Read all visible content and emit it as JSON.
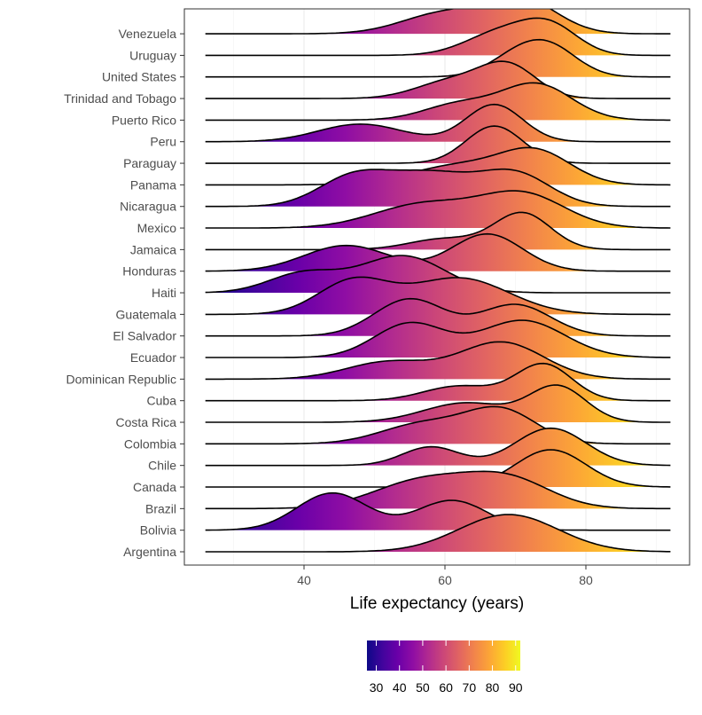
{
  "chart_data": {
    "type": "ridgeline",
    "xlabel": "Life expectancy (years)",
    "x_ticks": [
      40,
      60,
      80
    ],
    "x_range": [
      24.5,
      94
    ],
    "grid": true,
    "fill_colormap": "plasma",
    "legend": {
      "type": "colorbar",
      "placement": "bottom",
      "range": [
        26,
        92
      ],
      "ticks": [
        30,
        40,
        50,
        60,
        70,
        80,
        90
      ]
    },
    "colors": {
      "panel_border": "#333333",
      "grid": "#ebebeb",
      "curve": "#000000",
      "text": "#4d4d4d"
    },
    "countries": [
      {
        "name": "Argentina",
        "peaks": [
          [
            69,
            7,
            1
          ]
        ]
      },
      {
        "name": "Bolivia",
        "peaks": [
          [
            44,
            5,
            1
          ],
          [
            61,
            5,
            0.8
          ]
        ]
      },
      {
        "name": "Brazil",
        "peaks": [
          [
            57,
            7,
            0.85
          ],
          [
            69,
            6,
            0.85
          ]
        ]
      },
      {
        "name": "Canada",
        "peaks": [
          [
            75,
            5,
            1
          ]
        ]
      },
      {
        "name": "Chile",
        "peaks": [
          [
            58,
            4,
            0.5
          ],
          [
            75,
            5,
            1
          ]
        ]
      },
      {
        "name": "Colombia",
        "peaks": [
          [
            57,
            6,
            0.55
          ],
          [
            68,
            5,
            0.9
          ]
        ]
      },
      {
        "name": "Costa Rica",
        "peaks": [
          [
            63,
            6,
            0.55
          ],
          [
            76,
            4,
            1
          ]
        ]
      },
      {
        "name": "Cuba",
        "peaks": [
          [
            62,
            5,
            0.4
          ],
          [
            74,
            4,
            1
          ]
        ]
      },
      {
        "name": "Dominican Republic",
        "peaks": [
          [
            52,
            6,
            0.4
          ],
          [
            68,
            6,
            0.85
          ]
        ]
      },
      {
        "name": "Ecuador",
        "peaks": [
          [
            55,
            5,
            0.55
          ],
          [
            71,
            6,
            0.6
          ]
        ]
      },
      {
        "name": "El Salvador",
        "peaks": [
          [
            55,
            5,
            0.65
          ],
          [
            70,
            5,
            0.55
          ]
        ]
      },
      {
        "name": "Guatemala",
        "peaks": [
          [
            47,
            5,
            0.5
          ],
          [
            62,
            7,
            0.55
          ]
        ]
      },
      {
        "name": "Haiti",
        "peaks": [
          [
            40,
            5,
            0.45
          ],
          [
            54,
            6,
            0.85
          ]
        ]
      },
      {
        "name": "Honduras",
        "peaks": [
          [
            46,
            6,
            0.45
          ],
          [
            66,
            5,
            0.65
          ]
        ]
      },
      {
        "name": "Jamaica",
        "peaks": [
          [
            60,
            5,
            0.3
          ],
          [
            71,
            4,
            1
          ]
        ]
      },
      {
        "name": "Mexico",
        "peaks": [
          [
            57,
            7,
            0.5
          ],
          [
            71,
            6,
            0.7
          ]
        ]
      },
      {
        "name": "Nicaragua",
        "peaks": [
          [
            47,
            5,
            0.45
          ],
          [
            58,
            6,
            0.5
          ],
          [
            70,
            5,
            0.5
          ]
        ]
      },
      {
        "name": "Panama",
        "peaks": [
          [
            62,
            7,
            0.5
          ],
          [
            73,
            5,
            0.8
          ]
        ]
      },
      {
        "name": "Paraguay",
        "peaks": [
          [
            67,
            4,
            1
          ]
        ]
      },
      {
        "name": "Peru",
        "peaks": [
          [
            48,
            6,
            0.45
          ],
          [
            67,
            4,
            0.95
          ]
        ]
      },
      {
        "name": "Puerto Rico",
        "peaks": [
          [
            62,
            5,
            0.4
          ],
          [
            73,
            5,
            0.9
          ]
        ]
      },
      {
        "name": "Trinidad and Tobago",
        "peaks": [
          [
            61,
            5,
            0.5
          ],
          [
            69,
            4,
            0.9
          ]
        ]
      },
      {
        "name": "United States",
        "peaks": [
          [
            70,
            4,
            0.6
          ],
          [
            75,
            4,
            0.9
          ]
        ]
      },
      {
        "name": "Uruguay",
        "peaks": [
          [
            68,
            5,
            0.7
          ],
          [
            75,
            4,
            0.8
          ]
        ]
      },
      {
        "name": "Venezuela",
        "peaks": [
          [
            60,
            6,
            0.6
          ],
          [
            71,
            5,
            0.95
          ]
        ]
      }
    ]
  }
}
